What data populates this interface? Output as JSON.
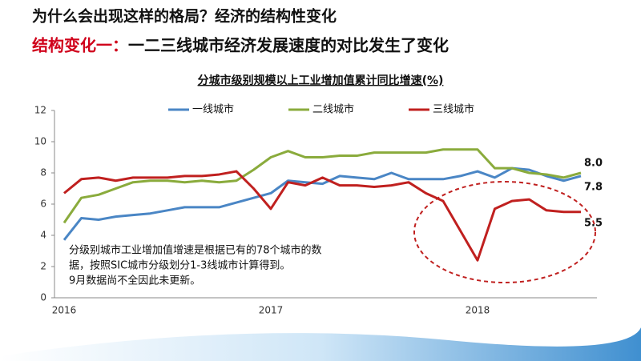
{
  "header": {
    "title": "为什么会出现这样的格局？经济的结构性变化",
    "subtitle_prefix": "结构变化一：",
    "subtitle": "一二三线城市经济发展速度的对比发生了变化"
  },
  "chart_data": {
    "type": "line",
    "title": "分城市级别规模以上工业增加值累计同比增速(%)",
    "categories": [
      "2016",
      null,
      null,
      null,
      null,
      null,
      null,
      null,
      null,
      null,
      null,
      null,
      "2017",
      null,
      null,
      null,
      null,
      null,
      null,
      null,
      null,
      null,
      null,
      null,
      "2018",
      null,
      null,
      null,
      null,
      null,
      null
    ],
    "ylim": [
      0,
      12
    ],
    "yticks": [
      0,
      2,
      4,
      6,
      8,
      10,
      12
    ],
    "grid": false,
    "series": [
      {
        "name": "一线城市",
        "color": "#4a86c5",
        "values": [
          3.7,
          5.1,
          5.0,
          5.2,
          5.3,
          5.4,
          5.6,
          5.8,
          5.8,
          5.8,
          6.1,
          6.4,
          6.7,
          7.5,
          7.4,
          7.3,
          7.8,
          7.7,
          7.6,
          8.0,
          7.6,
          7.6,
          7.6,
          7.8,
          8.1,
          7.7,
          8.3,
          8.2,
          7.8,
          7.5,
          7.8
        ],
        "value_labels": [
          null,
          null,
          null,
          null,
          null,
          null,
          null,
          null,
          null,
          null,
          null,
          null,
          null,
          null,
          null,
          null,
          null,
          null,
          null,
          null,
          null,
          null,
          null,
          null,
          null,
          null,
          null,
          null,
          null,
          null,
          "7.8"
        ]
      },
      {
        "name": "二线城市",
        "color": "#8aab3c",
        "values": [
          4.8,
          6.4,
          6.6,
          7.0,
          7.4,
          7.5,
          7.5,
          7.4,
          7.5,
          7.4,
          7.5,
          8.2,
          9.0,
          9.4,
          9.0,
          9.0,
          9.1,
          9.1,
          9.3,
          9.3,
          9.3,
          9.3,
          9.5,
          9.5,
          9.5,
          8.3,
          8.3,
          8.0,
          7.9,
          7.7,
          8.0
        ],
        "value_labels": [
          null,
          null,
          null,
          null,
          null,
          null,
          null,
          null,
          null,
          null,
          null,
          null,
          null,
          null,
          null,
          null,
          null,
          null,
          null,
          null,
          null,
          null,
          null,
          null,
          null,
          null,
          null,
          null,
          null,
          null,
          "8.0"
        ]
      },
      {
        "name": "三线城市",
        "color": "#c0201f",
        "values": [
          6.7,
          7.6,
          7.7,
          7.5,
          7.7,
          7.7,
          7.7,
          7.8,
          7.8,
          7.9,
          8.1,
          7.0,
          5.7,
          7.4,
          7.2,
          7.7,
          7.2,
          7.2,
          7.1,
          7.2,
          7.4,
          6.7,
          6.2,
          4.3,
          2.4,
          5.7,
          6.2,
          6.3,
          5.6,
          5.5,
          5.5
        ],
        "value_labels": [
          null,
          null,
          null,
          null,
          null,
          null,
          null,
          null,
          null,
          null,
          null,
          null,
          null,
          null,
          null,
          null,
          null,
          null,
          null,
          null,
          null,
          null,
          null,
          null,
          null,
          null,
          null,
          null,
          null,
          null,
          "5.5"
        ]
      }
    ],
    "annotations": [
      "分级别城市工业增加值增速是根据已有的78个城市的数",
      "据，按照SIC城市分级划分1-3线城市计算得到。",
      "9月数据尚不全因此未更新。"
    ]
  }
}
